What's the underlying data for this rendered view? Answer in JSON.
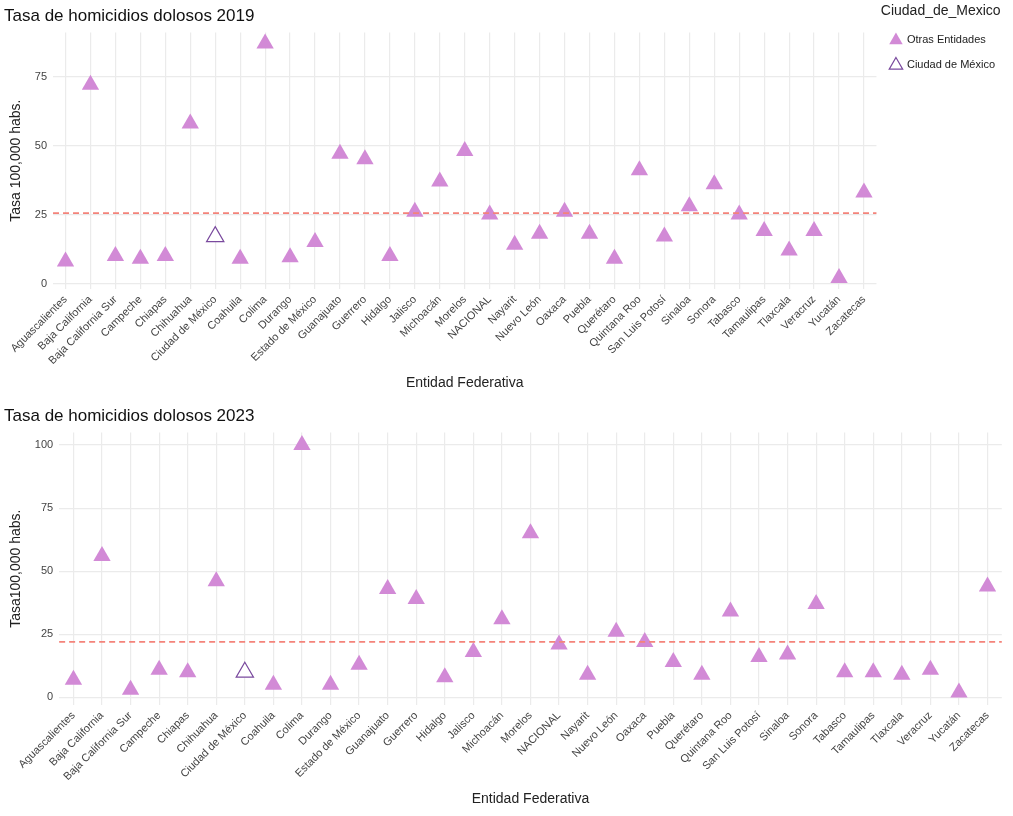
{
  "chart_data": [
    {
      "type": "scatter",
      "title": "Tasa de homicidios dolosos 2019",
      "xlabel": "Entidad Federativa",
      "ylabel": "Tasa 100,000 habs.",
      "legend_title": "Ciudad_de_Mexico",
      "legend": "top right",
      "marker": "triangle",
      "grid": true,
      "categories": [
        "Aguascalientes",
        "Baja California",
        "Baja California Sur",
        "Campeche",
        "Chiapas",
        "Chihuahua",
        "Ciudad de México",
        "Coahuila",
        "Colima",
        "Durango",
        "Estado de México",
        "Guanajuato",
        "Guerrero",
        "Hidalgo",
        "Jalisco",
        "Michoacán",
        "Morelos",
        "NACIONAL",
        "Nayarit",
        "Nuevo León",
        "Oaxaca",
        "Puebla",
        "Querétaro",
        "Quintana Roo",
        "San Luis Potosí",
        "Sinaloa",
        "Sonora",
        "Tabasco",
        "Tamaulipas",
        "Tlaxcala",
        "Veracruz",
        "Yucatán",
        "Zacatecas"
      ],
      "series": [
        {
          "name": "Otras Entidades",
          "color": "#d28ad6",
          "values": [
            8,
            72,
            10,
            9,
            10,
            58,
            null,
            9,
            87,
            9.5,
            15,
            47,
            45,
            10,
            26,
            37,
            48,
            25,
            14,
            18,
            26,
            18,
            9,
            41,
            17,
            28,
            36,
            25,
            19,
            12,
            19,
            2,
            33
          ]
        },
        {
          "name": "Ciudad de México",
          "color": "#7a4a9e",
          "values": [
            null,
            null,
            null,
            null,
            null,
            null,
            17,
            null,
            null,
            null,
            null,
            null,
            null,
            null,
            null,
            null,
            null,
            null,
            null,
            null,
            null,
            null,
            null,
            null,
            null,
            null,
            null,
            null,
            null,
            null,
            null,
            null,
            null
          ]
        }
      ],
      "ylim": [
        -2,
        91
      ],
      "yticks": [
        0,
        25,
        50,
        75
      ],
      "ref_lines": [
        {
          "axis": "y",
          "value": 25.5,
          "color": "#f4837a",
          "line_style": "dashed"
        }
      ]
    },
    {
      "type": "scatter",
      "title": "Tasa de homicidios dolosos 2023",
      "xlabel": "Entidad Federativa",
      "ylabel": "Tasa100,000 habs.",
      "marker": "triangle",
      "grid": true,
      "categories": [
        "Aguascalientes",
        "Baja California",
        "Baja California Sur",
        "Campeche",
        "Chiapas",
        "Chihuahua",
        "Ciudad de México",
        "Coahuila",
        "Colima",
        "Durango",
        "Estado de México",
        "Guanajuato",
        "Guerrero",
        "Hidalgo",
        "Jalisco",
        "Michoacán",
        "Morelos",
        "NACIONAL",
        "Nayarit",
        "Nuevo León",
        "Oaxaca",
        "Puebla",
        "Querétaro",
        "Quintana Roo",
        "San Luis Potosí",
        "Sinaloa",
        "Sonora",
        "Tabasco",
        "Tamaulipas",
        "Tlaxcala",
        "Veracruz",
        "Yucatán",
        "Zacatecas"
      ],
      "series": [
        {
          "color": "#d28ad6",
          "values": [
            7,
            56,
            3,
            11,
            10,
            46,
            null,
            5,
            100,
            5,
            13,
            43,
            39,
            8,
            18,
            31,
            65,
            21,
            9,
            26,
            22,
            14,
            9,
            34,
            16,
            17,
            37,
            10,
            10,
            9,
            11,
            2,
            44
          ]
        },
        {
          "color": "#7a4a9e",
          "values": [
            null,
            null,
            null,
            null,
            null,
            null,
            10,
            null,
            null,
            null,
            null,
            null,
            null,
            null,
            null,
            null,
            null,
            null,
            null,
            null,
            null,
            null,
            null,
            null,
            null,
            null,
            null,
            null,
            null,
            null,
            null,
            null,
            null
          ]
        }
      ],
      "ylim": [
        -3,
        105
      ],
      "yticks": [
        0,
        25,
        50,
        75,
        100
      ],
      "ref_lines": [
        {
          "axis": "y",
          "value": 22,
          "color": "#f4837a",
          "line_style": "dashed"
        }
      ]
    }
  ]
}
